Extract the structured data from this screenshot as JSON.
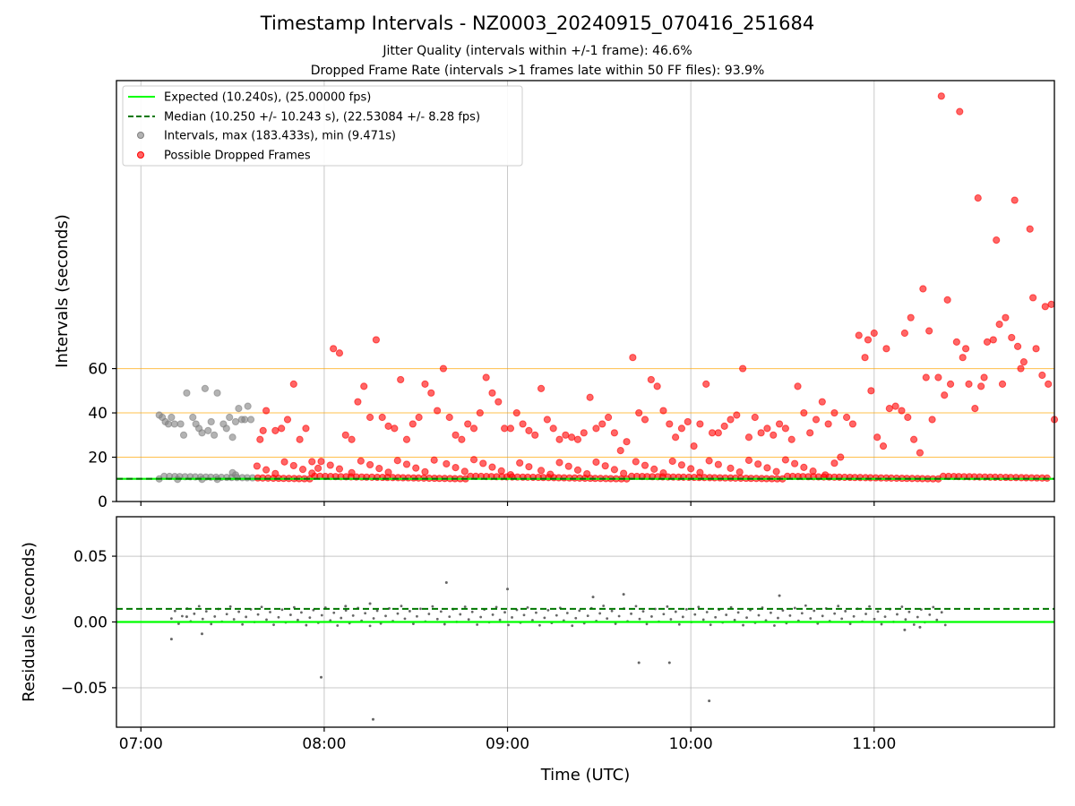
{
  "chart_data": [
    {
      "type": "scatter",
      "title": "Timestamp Intervals - NZ0003_20240915_070416_251684",
      "subtitles": [
        "Jitter Quality (intervals within +/-1 frame): 46.6%",
        "Dropped Frame Rate (intervals >1 frames late within 50 FF files): 93.9%"
      ],
      "xlabel": "",
      "ylabel": "Intervals (seconds)",
      "xlim": [
        "06:52",
        "11:59"
      ],
      "ylim": [
        0,
        190
      ],
      "x_tick_labels": [
        "07:00",
        "08:00",
        "09:00",
        "10:00",
        "11:00"
      ],
      "y_ticks": [
        0,
        20,
        40,
        60
      ],
      "hlines_orange": [
        20,
        40,
        60
      ],
      "grid": "vertical",
      "legend_position": "top-left",
      "legend": [
        "Expected (10.240s), (25.00000 fps)",
        "Median (10.250 +/- 10.243 s), (22.53084 +/- 8.28 fps)",
        "Intervals, max (183.433s), min (9.471s)",
        "Possible Dropped Frames"
      ],
      "expected": 10.24,
      "median": 10.25,
      "series": [
        {
          "name": "Intervals, max (183.433s), min (9.471s)",
          "color": "#808080",
          "points": [
            [
              "07:06",
              39
            ],
            [
              "07:07",
              38
            ],
            [
              "07:08",
              36
            ],
            [
              "07:09",
              35
            ],
            [
              "07:10",
              38
            ],
            [
              "07:11",
              35
            ],
            [
              "07:13",
              35
            ],
            [
              "07:14",
              30
            ],
            [
              "07:15",
              49
            ],
            [
              "07:17",
              38
            ],
            [
              "07:18",
              35
            ],
            [
              "07:19",
              33
            ],
            [
              "07:20",
              31
            ],
            [
              "07:21",
              51
            ],
            [
              "07:22",
              32
            ],
            [
              "07:23",
              36
            ],
            [
              "07:24",
              30
            ],
            [
              "07:25",
              49
            ],
            [
              "07:27",
              35
            ],
            [
              "07:28",
              33
            ],
            [
              "07:29",
              38
            ],
            [
              "07:30",
              29
            ],
            [
              "07:31",
              36
            ],
            [
              "07:32",
              42
            ],
            [
              "07:33",
              37
            ],
            [
              "07:34",
              37
            ],
            [
              "07:35",
              43
            ],
            [
              "07:36",
              37
            ],
            [
              "07:30",
              13
            ],
            [
              "07:31",
              12
            ],
            [
              "07:12",
              10
            ],
            [
              "07:20",
              10
            ],
            [
              "07:25",
              10
            ]
          ]
        },
        {
          "name": "Possible Dropped Frames",
          "color": "#ff0000",
          "points": [
            [
              "07:39",
              28
            ],
            [
              "07:40",
              32
            ],
            [
              "07:41",
              41
            ],
            [
              "07:44",
              32
            ],
            [
              "07:46",
              33
            ],
            [
              "07:48",
              37
            ],
            [
              "07:50",
              53
            ],
            [
              "07:52",
              28
            ],
            [
              "07:54",
              33
            ],
            [
              "07:56",
              18
            ],
            [
              "07:58",
              15
            ],
            [
              "08:03",
              69
            ],
            [
              "08:05",
              67
            ],
            [
              "08:07",
              30
            ],
            [
              "08:09",
              28
            ],
            [
              "08:11",
              45
            ],
            [
              "08:13",
              52
            ],
            [
              "08:15",
              38
            ],
            [
              "08:17",
              73
            ],
            [
              "08:19",
              38
            ],
            [
              "08:21",
              34
            ],
            [
              "08:23",
              33
            ],
            [
              "08:25",
              55
            ],
            [
              "08:27",
              28
            ],
            [
              "08:29",
              35
            ],
            [
              "08:31",
              38
            ],
            [
              "08:33",
              53
            ],
            [
              "08:35",
              49
            ],
            [
              "08:37",
              41
            ],
            [
              "08:39",
              60
            ],
            [
              "08:41",
              38
            ],
            [
              "08:43",
              30
            ],
            [
              "08:45",
              28
            ],
            [
              "08:47",
              35
            ],
            [
              "08:49",
              33
            ],
            [
              "08:51",
              40
            ],
            [
              "08:53",
              56
            ],
            [
              "08:55",
              49
            ],
            [
              "08:57",
              45
            ],
            [
              "08:59",
              33
            ],
            [
              "09:01",
              33
            ],
            [
              "09:03",
              40
            ],
            [
              "09:05",
              35
            ],
            [
              "09:07",
              32
            ],
            [
              "09:09",
              30
            ],
            [
              "09:11",
              51
            ],
            [
              "09:13",
              37
            ],
            [
              "09:15",
              33
            ],
            [
              "09:17",
              28
            ],
            [
              "09:19",
              30
            ],
            [
              "09:21",
              29
            ],
            [
              "09:23",
              28
            ],
            [
              "09:25",
              31
            ],
            [
              "09:27",
              47
            ],
            [
              "09:29",
              33
            ],
            [
              "09:31",
              35
            ],
            [
              "09:33",
              38
            ],
            [
              "09:35",
              31
            ],
            [
              "09:37",
              23
            ],
            [
              "09:39",
              27
            ],
            [
              "09:41",
              65
            ],
            [
              "09:43",
              40
            ],
            [
              "09:45",
              37
            ],
            [
              "09:47",
              55
            ],
            [
              "09:49",
              52
            ],
            [
              "09:51",
              41
            ],
            [
              "09:53",
              35
            ],
            [
              "09:55",
              29
            ],
            [
              "09:57",
              33
            ],
            [
              "09:59",
              36
            ],
            [
              "10:01",
              25
            ],
            [
              "10:03",
              35
            ],
            [
              "10:05",
              53
            ],
            [
              "10:07",
              31
            ],
            [
              "10:09",
              31
            ],
            [
              "10:11",
              34
            ],
            [
              "10:13",
              37
            ],
            [
              "10:15",
              39
            ],
            [
              "10:17",
              60
            ],
            [
              "10:19",
              29
            ],
            [
              "10:21",
              38
            ],
            [
              "10:23",
              31
            ],
            [
              "10:25",
              33
            ],
            [
              "10:27",
              30
            ],
            [
              "10:29",
              35
            ],
            [
              "10:31",
              33
            ],
            [
              "10:33",
              28
            ],
            [
              "10:35",
              52
            ],
            [
              "10:37",
              40
            ],
            [
              "10:39",
              31
            ],
            [
              "10:41",
              37
            ],
            [
              "10:43",
              45
            ],
            [
              "10:45",
              35
            ],
            [
              "10:47",
              40
            ],
            [
              "10:49",
              20
            ],
            [
              "10:51",
              38
            ],
            [
              "10:53",
              35
            ],
            [
              "10:55",
              75
            ],
            [
              "10:57",
              65
            ],
            [
              "10:59",
              50
            ],
            [
              "11:01",
              29
            ],
            [
              "11:03",
              25
            ],
            [
              "11:05",
              42
            ],
            [
              "11:07",
              43
            ],
            [
              "11:09",
              41
            ],
            [
              "11:11",
              38
            ],
            [
              "11:13",
              28
            ],
            [
              "11:15",
              22
            ],
            [
              "11:17",
              56
            ],
            [
              "11:19",
              37
            ],
            [
              "11:21",
              56
            ],
            [
              "11:23",
              48
            ],
            [
              "11:25",
              53
            ],
            [
              "11:27",
              72
            ],
            [
              "11:29",
              65
            ],
            [
              "11:31",
              53
            ],
            [
              "11:33",
              42
            ],
            [
              "11:35",
              52
            ],
            [
              "11:37",
              72
            ],
            [
              "11:39",
              73
            ],
            [
              "11:41",
              80
            ],
            [
              "11:43",
              83
            ],
            [
              "11:45",
              74
            ],
            [
              "11:47",
              70
            ],
            [
              "11:49",
              63
            ],
            [
              "11:51",
              123
            ],
            [
              "11:53",
              69
            ],
            [
              "11:55",
              57
            ],
            [
              "11:57",
              53
            ],
            [
              "11:59",
              37
            ],
            [
              "10:58",
              73
            ],
            [
              "11:04",
              69
            ],
            [
              "11:10",
              76
            ],
            [
              "11:16",
              96
            ],
            [
              "11:22",
              183
            ],
            [
              "11:28",
              176
            ],
            [
              "11:34",
              137
            ],
            [
              "11:40",
              118
            ],
            [
              "11:46",
              136
            ],
            [
              "11:52",
              92
            ],
            [
              "11:56",
              88
            ],
            [
              "11:58",
              89
            ],
            [
              "11:00",
              76
            ],
            [
              "11:12",
              83
            ],
            [
              "11:18",
              77
            ],
            [
              "11:24",
              91
            ],
            [
              "11:30",
              69
            ],
            [
              "11:36",
              56
            ],
            [
              "11:42",
              53
            ],
            [
              "11:48",
              60
            ]
          ]
        }
      ]
    },
    {
      "type": "scatter",
      "xlabel": "Time (UTC)",
      "ylabel": "Residuals (seconds)",
      "xlim": [
        "06:52",
        "11:59"
      ],
      "ylim": [
        -0.08,
        0.08
      ],
      "x_tick_labels": [
        "07:00",
        "08:00",
        "09:00",
        "10:00",
        "11:00"
      ],
      "y_tick_labels": [
        "0.05",
        "0.00",
        "−0.05"
      ],
      "y_ticks": [
        0.05,
        0,
        -0.05
      ],
      "grid": "both",
      "expected_line": 0,
      "median_line": 0.01,
      "outliers": [
        [
          "07:10",
          -0.013
        ],
        [
          "07:15",
          0.004
        ],
        [
          "07:20",
          -0.009
        ],
        [
          "07:59",
          -0.042
        ],
        [
          "08:07",
          0.012
        ],
        [
          "08:15",
          0.014
        ],
        [
          "08:16",
          -0.074
        ],
        [
          "08:40",
          0.03
        ],
        [
          "09:00",
          0.025
        ],
        [
          "09:28",
          0.019
        ],
        [
          "09:38",
          0.021
        ],
        [
          "09:43",
          -0.031
        ],
        [
          "09:53",
          -0.031
        ],
        [
          "10:06",
          -0.06
        ],
        [
          "10:29",
          0.02
        ],
        [
          "11:10",
          -0.006
        ],
        [
          "11:15",
          -0.004
        ]
      ]
    }
  ]
}
